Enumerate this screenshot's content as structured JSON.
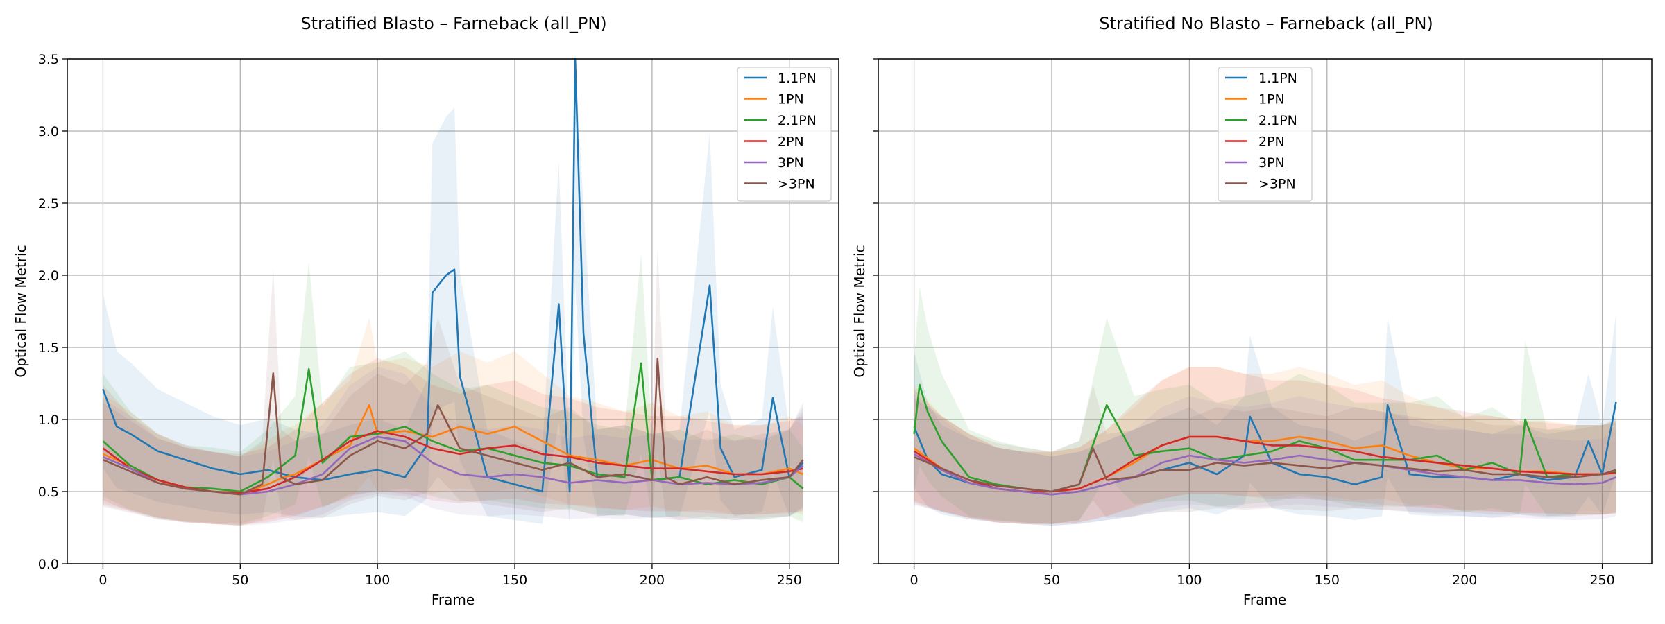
{
  "figure": {
    "background": "#ffffff",
    "grid_color": "#b0b0b0"
  },
  "series_styles": [
    {
      "name": "1.1PN",
      "color": "#1f77b4"
    },
    {
      "name": "1PN",
      "color": "#ff7f0e"
    },
    {
      "name": "2.1PN",
      "color": "#2ca02c"
    },
    {
      "name": "2PN",
      "color": "#d62728"
    },
    {
      "name": "3PN",
      "color": "#9467bd"
    },
    {
      "name": ">3PN",
      "color": "#8c564b"
    }
  ],
  "chart_data": [
    {
      "type": "line",
      "title": "Stratified Blasto – Farneback (all_PN)",
      "xlabel": "Frame",
      "ylabel": "Optical Flow Metric",
      "xlim": [
        -13,
        268
      ],
      "ylim": [
        0,
        3.5
      ],
      "xticks": [
        0,
        50,
        100,
        150,
        200,
        250
      ],
      "yticks": [
        0.0,
        0.5,
        1.0,
        1.5,
        2.0,
        2.5,
        3.0,
        3.5
      ],
      "grid": true,
      "legend_position": "upper right",
      "shaded_bands": "±1 std (faint, per series)",
      "series": [
        {
          "name": "1.1PN",
          "x": [
            0,
            5,
            10,
            20,
            30,
            40,
            50,
            60,
            70,
            80,
            90,
            100,
            110,
            118,
            120,
            125,
            128,
            130,
            140,
            150,
            160,
            166,
            170,
            172,
            175,
            180,
            190,
            200,
            210,
            221,
            225,
            230,
            240,
            244,
            250,
            255
          ],
          "y": [
            1.21,
            0.95,
            0.9,
            0.78,
            0.72,
            0.66,
            0.62,
            0.65,
            0.6,
            0.58,
            0.62,
            0.65,
            0.6,
            0.82,
            1.88,
            2.0,
            2.04,
            1.3,
            0.6,
            0.55,
            0.5,
            1.8,
            0.5,
            3.5,
            1.6,
            0.6,
            0.62,
            0.58,
            0.6,
            1.93,
            0.8,
            0.6,
            0.65,
            1.15,
            0.6,
            0.7
          ]
        },
        {
          "name": "1PN",
          "x": [
            0,
            10,
            20,
            30,
            40,
            50,
            60,
            66,
            70,
            80,
            90,
            97,
            100,
            110,
            120,
            130,
            140,
            150,
            160,
            170,
            180,
            190,
            200,
            210,
            220,
            230,
            240,
            250,
            255
          ],
          "y": [
            0.76,
            0.68,
            0.58,
            0.52,
            0.5,
            0.48,
            0.55,
            0.6,
            0.62,
            0.72,
            0.82,
            1.1,
            0.9,
            0.92,
            0.88,
            0.95,
            0.9,
            0.95,
            0.85,
            0.75,
            0.72,
            0.68,
            0.72,
            0.66,
            0.68,
            0.62,
            0.62,
            0.66,
            0.62
          ]
        },
        {
          "name": "2.1PN",
          "x": [
            0,
            10,
            20,
            30,
            40,
            50,
            60,
            70,
            75,
            80,
            90,
            100,
            110,
            120,
            130,
            140,
            150,
            160,
            170,
            180,
            190,
            196,
            200,
            210,
            220,
            230,
            240,
            250,
            255
          ],
          "y": [
            0.85,
            0.68,
            0.58,
            0.53,
            0.52,
            0.5,
            0.6,
            0.75,
            1.35,
            0.7,
            0.88,
            0.9,
            0.95,
            0.85,
            0.78,
            0.8,
            0.75,
            0.7,
            0.68,
            0.62,
            0.6,
            1.39,
            0.58,
            0.6,
            0.55,
            0.58,
            0.55,
            0.6,
            0.52
          ]
        },
        {
          "name": "2PN",
          "x": [
            0,
            10,
            20,
            30,
            40,
            50,
            60,
            70,
            80,
            90,
            100,
            110,
            120,
            130,
            140,
            150,
            160,
            170,
            180,
            190,
            200,
            210,
            220,
            230,
            240,
            250,
            255
          ],
          "y": [
            0.8,
            0.66,
            0.58,
            0.53,
            0.5,
            0.49,
            0.52,
            0.6,
            0.72,
            0.85,
            0.92,
            0.88,
            0.8,
            0.76,
            0.8,
            0.82,
            0.76,
            0.74,
            0.7,
            0.68,
            0.66,
            0.66,
            0.64,
            0.62,
            0.62,
            0.64,
            0.66
          ]
        },
        {
          "name": "3PN",
          "x": [
            0,
            10,
            20,
            30,
            40,
            50,
            60,
            70,
            80,
            90,
            100,
            110,
            120,
            130,
            140,
            150,
            160,
            170,
            180,
            190,
            200,
            210,
            220,
            230,
            240,
            250,
            255
          ],
          "y": [
            0.74,
            0.66,
            0.56,
            0.52,
            0.5,
            0.48,
            0.5,
            0.55,
            0.62,
            0.8,
            0.88,
            0.85,
            0.7,
            0.62,
            0.6,
            0.62,
            0.6,
            0.56,
            0.58,
            0.56,
            0.58,
            0.55,
            0.56,
            0.55,
            0.56,
            0.6,
            0.68
          ]
        },
        {
          "name": ">3PN",
          "x": [
            0,
            10,
            20,
            30,
            40,
            50,
            58,
            62,
            65,
            70,
            80,
            90,
            100,
            110,
            118,
            122,
            130,
            140,
            150,
            160,
            170,
            180,
            190,
            200,
            202,
            205,
            210,
            220,
            230,
            240,
            250,
            255
          ],
          "y": [
            0.72,
            0.64,
            0.56,
            0.52,
            0.5,
            0.48,
            0.55,
            1.32,
            0.6,
            0.55,
            0.58,
            0.75,
            0.85,
            0.8,
            0.9,
            1.1,
            0.8,
            0.75,
            0.7,
            0.65,
            0.7,
            0.6,
            0.62,
            0.58,
            1.42,
            0.6,
            0.55,
            0.6,
            0.55,
            0.58,
            0.6,
            0.72
          ]
        }
      ]
    },
    {
      "type": "line",
      "title": "Stratified No Blasto – Farneback (all_PN)",
      "xlabel": "Frame",
      "ylabel": "Optical Flow Metric",
      "xlim": [
        -13,
        268
      ],
      "ylim": [
        0,
        3.5
      ],
      "xticks": [
        0,
        50,
        100,
        150,
        200,
        250
      ],
      "yticks": [
        0.0,
        0.5,
        1.0,
        1.5,
        2.0,
        2.5,
        3.0,
        3.5
      ],
      "grid": true,
      "legend_position": "upper center",
      "shaded_bands": "±1 std (faint, per series)",
      "series": [
        {
          "name": "1.1PN",
          "x": [
            0,
            5,
            10,
            20,
            30,
            40,
            50,
            60,
            70,
            80,
            90,
            100,
            110,
            120,
            122,
            130,
            140,
            150,
            160,
            170,
            172,
            180,
            190,
            200,
            210,
            220,
            230,
            240,
            245,
            250,
            255
          ],
          "y": [
            0.95,
            0.72,
            0.62,
            0.56,
            0.52,
            0.5,
            0.48,
            0.5,
            0.55,
            0.6,
            0.65,
            0.7,
            0.62,
            0.75,
            1.02,
            0.7,
            0.62,
            0.6,
            0.55,
            0.6,
            1.1,
            0.62,
            0.6,
            0.6,
            0.58,
            0.62,
            0.58,
            0.6,
            0.85,
            0.62,
            1.12
          ]
        },
        {
          "name": "1PN",
          "x": [
            0,
            10,
            20,
            30,
            40,
            50,
            60,
            70,
            80,
            90,
            100,
            110,
            120,
            130,
            140,
            150,
            160,
            170,
            180,
            190,
            200,
            210,
            220,
            230,
            240,
            250,
            255
          ],
          "y": [
            0.8,
            0.66,
            0.58,
            0.52,
            0.5,
            0.5,
            0.52,
            0.6,
            0.7,
            0.82,
            0.88,
            0.88,
            0.85,
            0.85,
            0.88,
            0.85,
            0.8,
            0.82,
            0.75,
            0.7,
            0.66,
            0.66,
            0.64,
            0.64,
            0.62,
            0.62,
            0.64
          ]
        },
        {
          "name": "2.1PN",
          "x": [
            0,
            2,
            5,
            10,
            20,
            30,
            40,
            50,
            60,
            70,
            80,
            90,
            100,
            110,
            120,
            130,
            140,
            150,
            160,
            170,
            180,
            190,
            200,
            210,
            220,
            222,
            230,
            240,
            250,
            255
          ],
          "y": [
            0.9,
            1.24,
            1.05,
            0.85,
            0.6,
            0.55,
            0.52,
            0.5,
            0.55,
            1.1,
            0.75,
            0.78,
            0.8,
            0.72,
            0.75,
            0.78,
            0.85,
            0.8,
            0.72,
            0.72,
            0.72,
            0.75,
            0.65,
            0.7,
            0.62,
            1.0,
            0.6,
            0.62,
            0.62,
            0.64
          ]
        },
        {
          "name": "2PN",
          "x": [
            0,
            10,
            20,
            30,
            40,
            50,
            60,
            70,
            80,
            90,
            100,
            110,
            120,
            130,
            140,
            150,
            160,
            170,
            180,
            190,
            200,
            210,
            220,
            230,
            240,
            250,
            255
          ],
          "y": [
            0.78,
            0.66,
            0.58,
            0.52,
            0.5,
            0.5,
            0.52,
            0.6,
            0.72,
            0.82,
            0.88,
            0.88,
            0.85,
            0.82,
            0.82,
            0.8,
            0.78,
            0.74,
            0.72,
            0.7,
            0.68,
            0.66,
            0.64,
            0.63,
            0.62,
            0.62,
            0.63
          ]
        },
        {
          "name": "3PN",
          "x": [
            0,
            10,
            20,
            30,
            40,
            50,
            60,
            70,
            80,
            90,
            100,
            110,
            120,
            130,
            140,
            150,
            160,
            170,
            180,
            190,
            200,
            210,
            220,
            230,
            240,
            250,
            255
          ],
          "y": [
            0.76,
            0.65,
            0.56,
            0.52,
            0.5,
            0.48,
            0.5,
            0.55,
            0.6,
            0.7,
            0.75,
            0.72,
            0.7,
            0.72,
            0.75,
            0.72,
            0.7,
            0.68,
            0.65,
            0.62,
            0.6,
            0.58,
            0.58,
            0.56,
            0.55,
            0.56,
            0.6
          ]
        },
        {
          "name": ">3PN",
          "x": [
            0,
            10,
            20,
            30,
            40,
            50,
            60,
            65,
            70,
            80,
            90,
            100,
            110,
            120,
            130,
            140,
            150,
            160,
            170,
            180,
            190,
            200,
            210,
            220,
            230,
            240,
            250,
            255
          ],
          "y": [
            0.74,
            0.66,
            0.58,
            0.54,
            0.52,
            0.5,
            0.55,
            0.8,
            0.58,
            0.6,
            0.65,
            0.65,
            0.7,
            0.68,
            0.7,
            0.68,
            0.66,
            0.7,
            0.68,
            0.66,
            0.64,
            0.65,
            0.62,
            0.62,
            0.6,
            0.6,
            0.62,
            0.65
          ]
        }
      ]
    }
  ]
}
